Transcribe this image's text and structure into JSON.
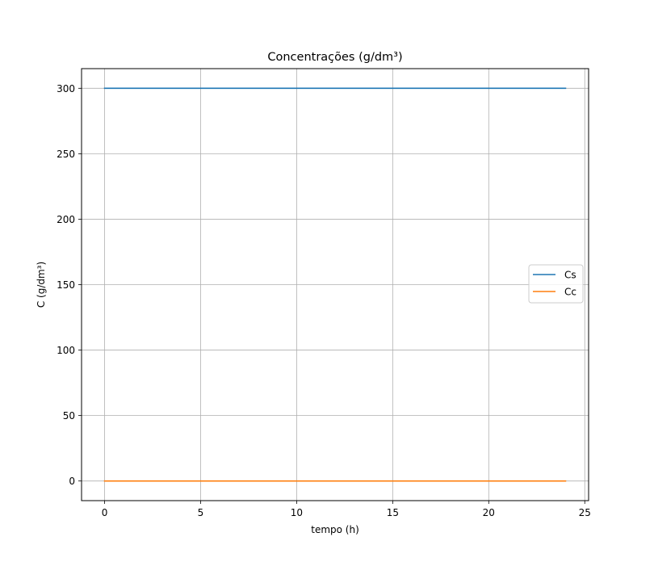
{
  "chart_data": {
    "type": "line",
    "title": "Concentrações (g/dm³)",
    "xlabel": "tempo (h)",
    "ylabel": "C (g/dm³)",
    "xlim": [
      -1.2,
      25.2
    ],
    "ylim": [
      -15,
      315
    ],
    "xticks": [
      0,
      5,
      10,
      15,
      20,
      25
    ],
    "yticks": [
      0,
      50,
      100,
      150,
      200,
      250,
      300
    ],
    "xtick_labels": [
      "0",
      "5",
      "10",
      "15",
      "20",
      "25"
    ],
    "ytick_labels": [
      "0",
      "50",
      "100",
      "150",
      "200",
      "250",
      "300"
    ],
    "grid": true,
    "legend_position": "center-right",
    "series": [
      {
        "name": "Cs",
        "color": "#1f77b4",
        "x": [
          0,
          24
        ],
        "y": [
          300,
          300
        ]
      },
      {
        "name": "Cc",
        "color": "#ff7f0e",
        "x": [
          0,
          24
        ],
        "y": [
          0,
          0
        ]
      }
    ]
  }
}
